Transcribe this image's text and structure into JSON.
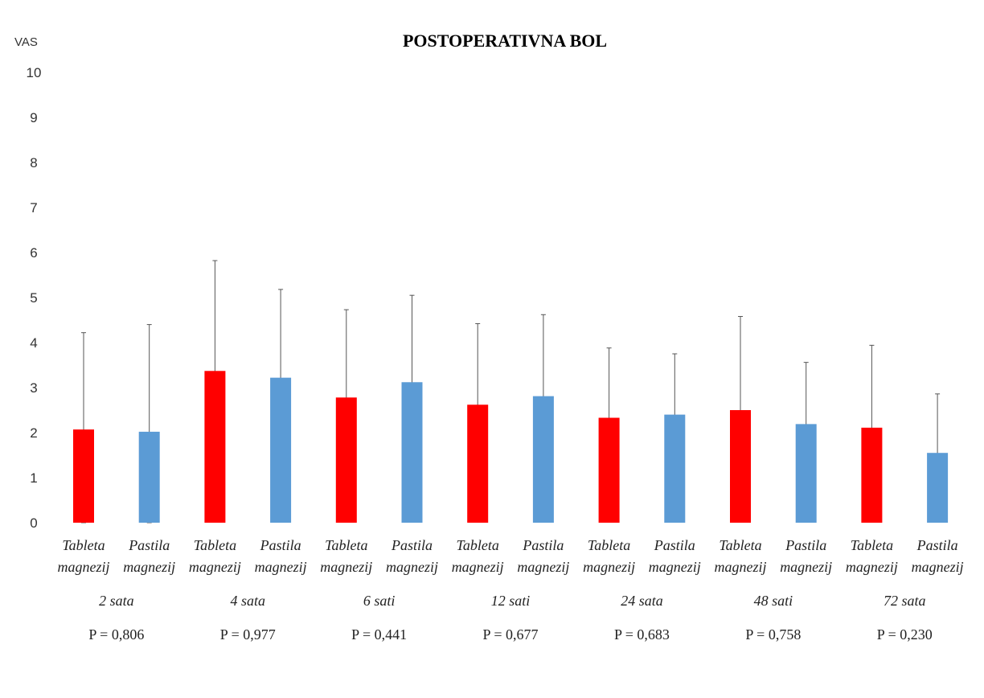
{
  "chart_data": {
    "type": "bar",
    "title": "POSTOPERATIVNA BOL",
    "ylabel": "VAS",
    "ylim": [
      0,
      10
    ],
    "yticks": [
      0,
      1,
      2,
      3,
      4,
      5,
      6,
      7,
      8,
      9,
      10
    ],
    "grid": false,
    "error_bars": true,
    "groups": [
      {
        "time": "2 sata",
        "p": "P = 0,806"
      },
      {
        "time": "4 sata",
        "p": "P = 0,977"
      },
      {
        "time": "6 sati",
        "p": "P = 0,441"
      },
      {
        "time": "12 sati",
        "p": "P = 0,677"
      },
      {
        "time": "24 sata",
        "p": "P = 0,683"
      },
      {
        "time": "48 sati",
        "p": "P = 0,758"
      },
      {
        "time": "72 sata",
        "p": "P = 0,230"
      }
    ],
    "series": [
      {
        "label_line1": "Tableta",
        "label_line2": "magnezij",
        "color": "#ff0000",
        "values": [
          2.07,
          3.37,
          2.78,
          2.62,
          2.33,
          2.5,
          2.11
        ],
        "error": [
          2.15,
          2.45,
          1.95,
          1.8,
          1.55,
          2.08,
          1.83
        ]
      },
      {
        "label_line1": "Pastila",
        "label_line2": "magnezij",
        "color": "#5b9bd5",
        "values": [
          2.02,
          3.22,
          3.12,
          2.81,
          2.4,
          2.19,
          1.55
        ],
        "error": [
          2.38,
          1.96,
          1.93,
          1.81,
          1.35,
          1.37,
          1.31
        ]
      }
    ]
  }
}
